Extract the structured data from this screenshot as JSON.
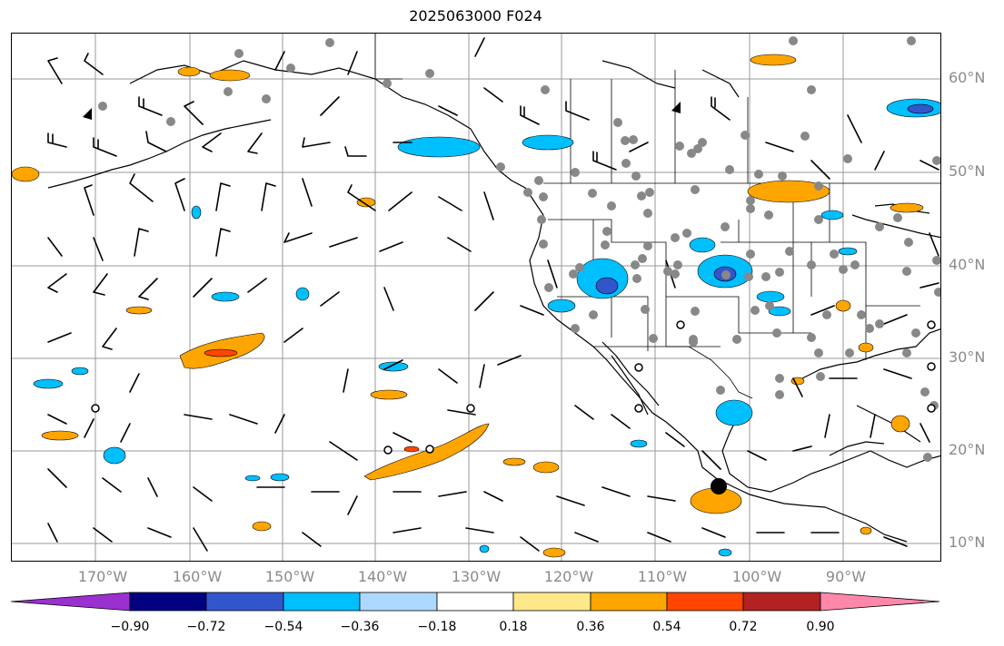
{
  "title": "2025063000 F024",
  "latitude_labels": [
    "60°N",
    "50°N",
    "40°N",
    "30°N",
    "20°N",
    "10°N"
  ],
  "longitude_labels": [
    "170°W",
    "160°W",
    "150°W",
    "140°W",
    "130°W",
    "120°W",
    "110°W",
    "100°W",
    "90°W"
  ],
  "colorbar": {
    "ticks": [
      "−0.90",
      "−0.72",
      "−0.54",
      "−0.36",
      "−0.18",
      "0.18",
      "0.36",
      "0.54",
      "0.72",
      "0.90"
    ],
    "colors": [
      "#9b30d0",
      "#000080",
      "#3355cc",
      "#00bfff",
      "#add8ff",
      "#ffffff",
      "#ffe88a",
      "#ffa500",
      "#ff4500",
      "#b22222",
      "#ff88aa"
    ]
  }
}
